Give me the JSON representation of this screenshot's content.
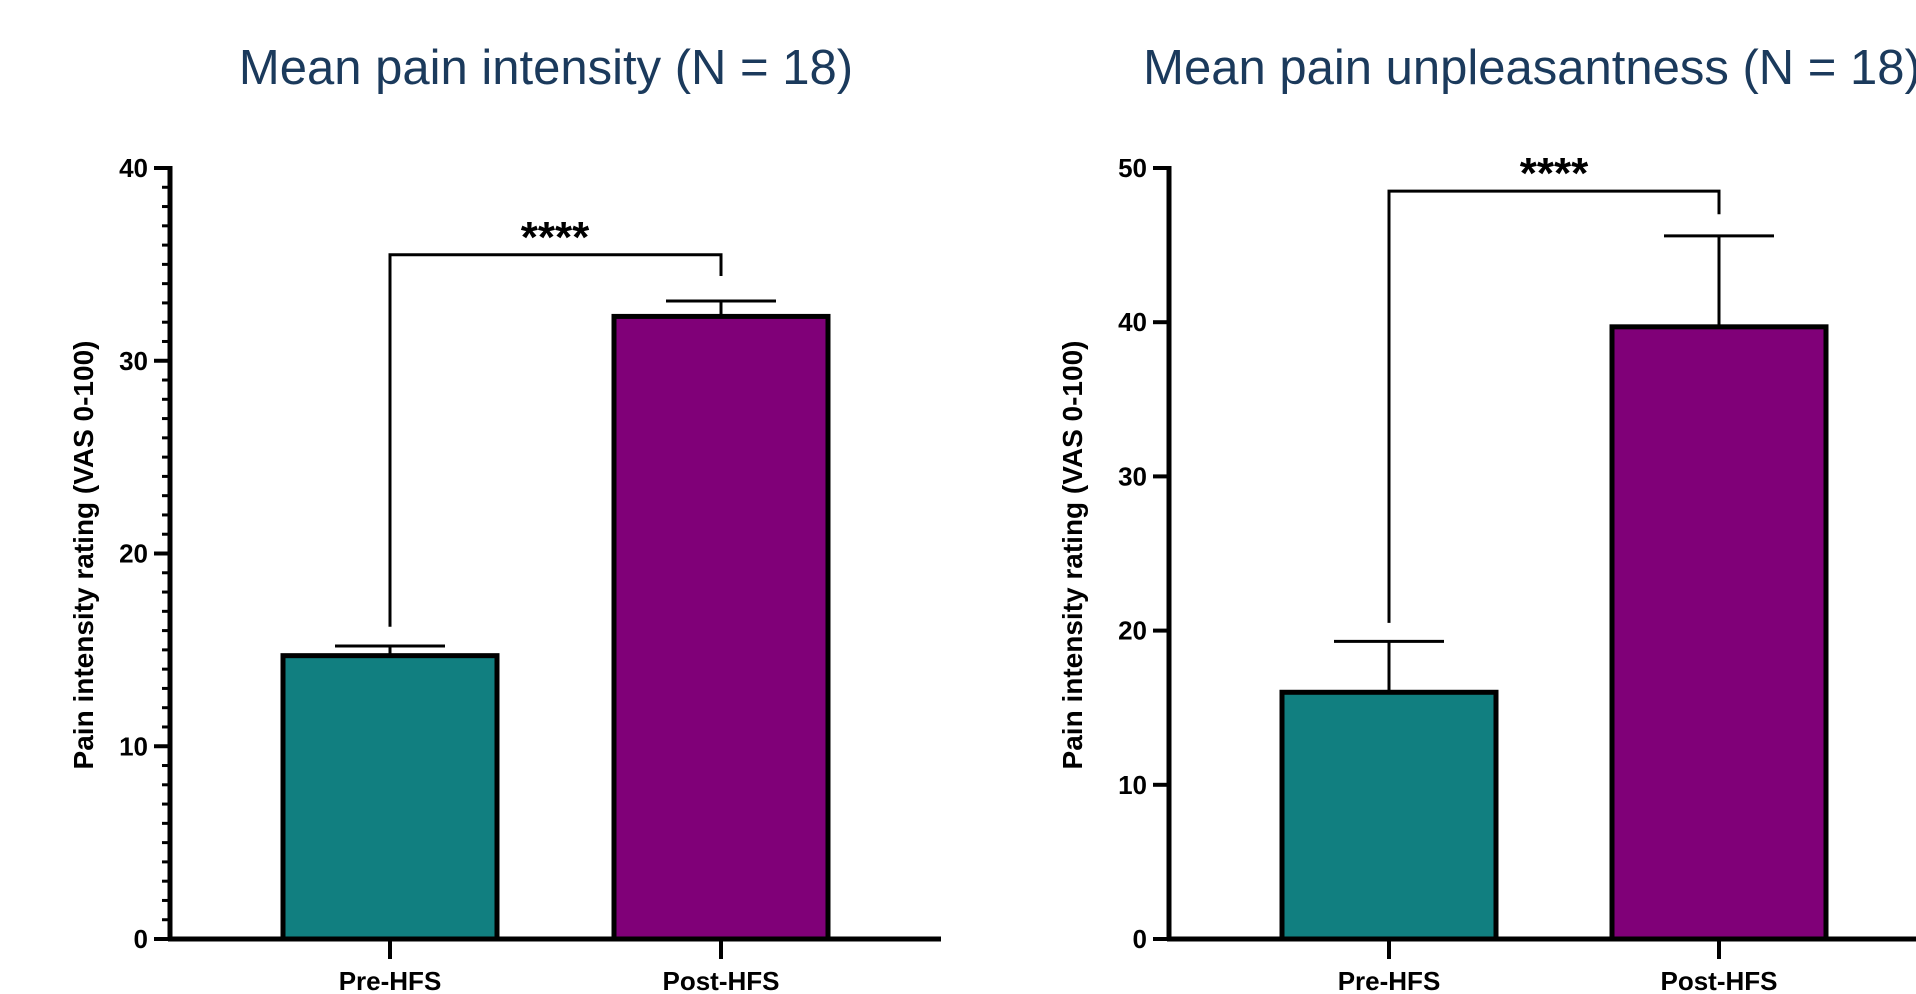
{
  "chart_data": [
    {
      "type": "bar",
      "title": "Mean pain intensity (N = 18)",
      "ylabel": "Pain intensity rating (VAS 0-100)",
      "xlabel": "",
      "categories": [
        "Pre-HFS",
        "Post-HFS"
      ],
      "values": [
        14.7,
        32.3
      ],
      "error_upper": [
        15.2,
        33.1
      ],
      "colors": [
        "#117f80",
        "#800078"
      ],
      "ylim": [
        0,
        40
      ],
      "yticks": [
        0,
        10,
        20,
        30,
        40
      ],
      "ytick_labels": [
        "0",
        "10",
        "20",
        "30",
        "40"
      ],
      "minor_ticks": true,
      "significance": {
        "label": "****",
        "between": [
          "Pre-HFS",
          "Post-HFS"
        ],
        "bracket_y": 35.5,
        "drop_left_y": 16.2,
        "drop_right_y": 34.4
      },
      "grid": false
    },
    {
      "type": "bar",
      "title": "Mean pain unpleasantness (N = 18)",
      "ylabel": "Pain intensity rating (VAS 0-100)",
      "xlabel": "",
      "categories": [
        "Pre-HFS",
        "Post-HFS"
      ],
      "values": [
        16.0,
        39.7
      ],
      "error_upper": [
        19.3,
        45.6
      ],
      "colors": [
        "#117f80",
        "#800078"
      ],
      "ylim": [
        0,
        50
      ],
      "yticks": [
        0,
        10,
        20,
        30,
        40,
        50
      ],
      "ytick_labels": [
        "0",
        "10",
        "20",
        "30",
        "40",
        "50"
      ],
      "minor_ticks": false,
      "significance": {
        "label": "****",
        "between": [
          "Pre-HFS",
          "Post-HFS"
        ],
        "bracket_y": 48.5,
        "drop_left_y": 20.5,
        "drop_right_y": 47.0
      },
      "grid": false
    }
  ]
}
